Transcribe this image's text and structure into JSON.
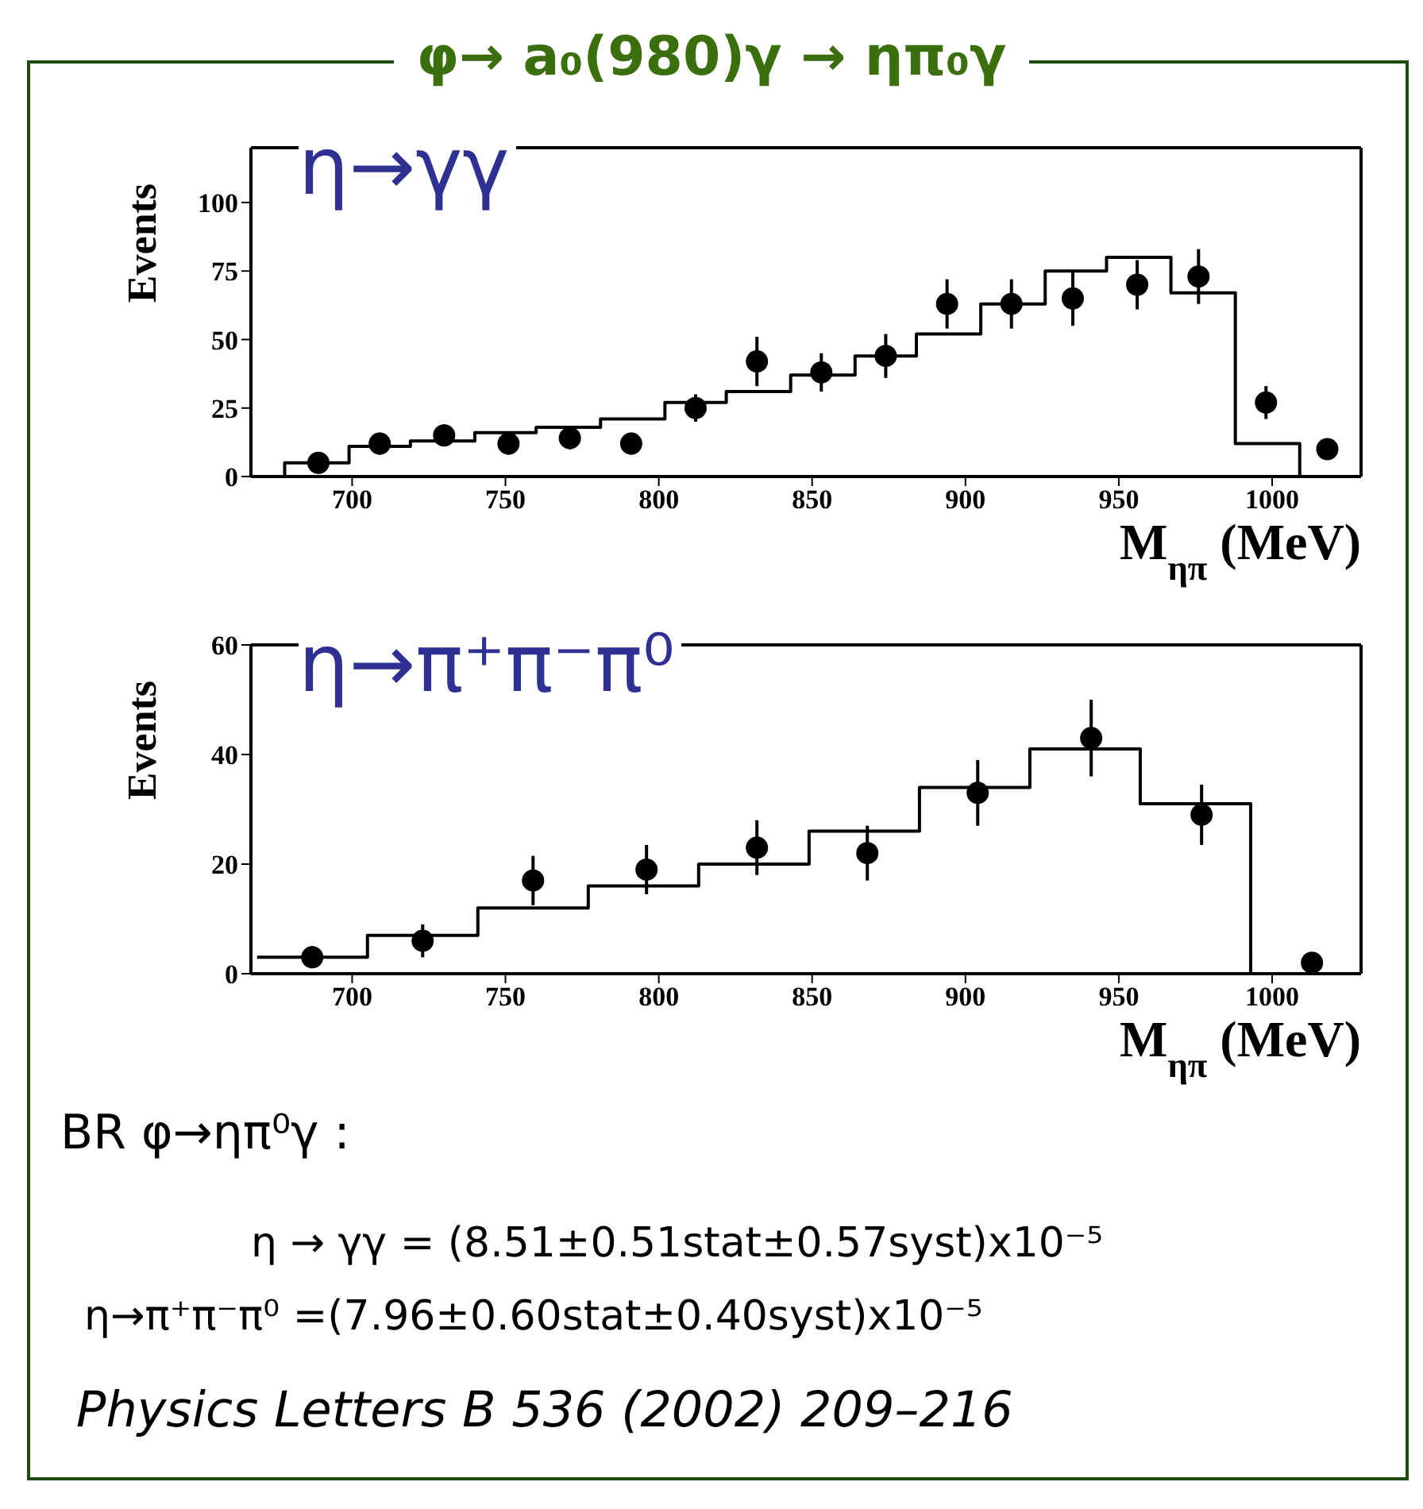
{
  "chart_data": [
    {
      "type": "step",
      "title": "φ→ a₀(980)γ → ηπ₀γ",
      "xlabel": "M$_{ηπ}$ (MeV)",
      "ylabel": "Events",
      "xlim": [
        667,
        1029
      ],
      "ylim": [
        0,
        120
      ],
      "xticks": [
        700,
        750,
        800,
        850,
        900,
        950,
        1000
      ],
      "yticks": [
        0,
        25,
        50,
        75,
        100
      ],
      "annotations": [
        "η→γγ"
      ],
      "series": [
        {
          "color": "#000000",
          "x": [
            678,
            678,
            699,
            719,
            740,
            760,
            781,
            802,
            822,
            843,
            864,
            884,
            905,
            926,
            946,
            967,
            988,
            1009
          ],
          "values": [
            0,
            5,
            11,
            13,
            16,
            18,
            21,
            27,
            31,
            37,
            44,
            52,
            63,
            75,
            80,
            67,
            12,
            0
          ]
        },
        {
          "type": "scatter",
          "marker": "circle",
          "color": "#000000",
          "x": [
            689,
            709,
            730,
            751,
            771,
            791,
            812,
            832,
            853,
            874,
            894,
            915,
            935,
            956,
            976,
            998,
            1018
          ],
          "values": [
            5,
            12,
            15,
            12,
            14,
            12,
            25,
            42,
            38,
            44,
            63,
            63,
            65,
            70,
            73,
            27,
            10
          ],
          "errors": [
            3,
            4,
            4,
            4,
            4,
            4,
            5,
            9,
            7,
            8,
            9,
            9,
            10,
            9,
            10,
            6,
            3
          ]
        }
      ]
    },
    {
      "type": "step",
      "xlabel": "M$_{ηπ}$ (MeV)",
      "ylabel": "Events",
      "xlim": [
        667,
        1029
      ],
      "ylim": [
        0,
        60
      ],
      "xticks": [
        700,
        750,
        800,
        850,
        900,
        950,
        1000
      ],
      "yticks": [
        0,
        20,
        40,
        60
      ],
      "annotations": [
        "η→π⁺π⁻π⁰",
        "BR φ→ηπ⁰γ :",
        "η → γγ = (8.51±0.51stat±0.57syst)x10⁻⁵",
        "η→π⁺π⁻π⁰ =(7.96±0.60stat±0.40syst)x10⁻⁵",
        "Physics Letters B 536 (2002) 209–216"
      ],
      "series": [
        {
          "color": "#000000",
          "x": [
            669,
            705,
            741,
            777,
            813,
            849,
            885,
            921,
            957,
            993
          ],
          "values": [
            3,
            7,
            12,
            16,
            20,
            26,
            34,
            41,
            31,
            0
          ]
        },
        {
          "type": "scatter",
          "marker": "circle",
          "color": "#000000",
          "x": [
            687,
            723,
            759,
            796,
            832,
            868,
            904,
            941,
            977,
            1013
          ],
          "values": [
            3,
            6,
            17,
            19,
            23,
            22,
            33,
            43,
            29,
            2
          ],
          "errors": [
            2,
            3,
            4.5,
            4.5,
            5,
            5,
            6,
            7,
            5.5,
            1.5
          ]
        }
      ]
    }
  ]
}
